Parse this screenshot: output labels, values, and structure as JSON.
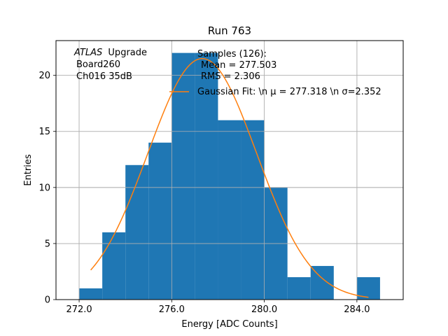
{
  "chart_data": {
    "type": "bar",
    "title": "Run 763",
    "xlabel": "Energy [ADC Counts]",
    "ylabel": "Entries",
    "xlim": [
      271.0,
      286.0
    ],
    "ylim": [
      0,
      23.1
    ],
    "xticks": [
      272.0,
      276.0,
      280.0,
      284.0
    ],
    "xtick_labels": [
      "272.0",
      "276.0",
      "280.0",
      "284.0"
    ],
    "yticks": [
      0,
      5,
      10,
      15,
      20
    ],
    "ytick_labels": [
      "0",
      "5",
      "10",
      "15",
      "20"
    ],
    "grid": true,
    "histogram": {
      "name": "Samples (126):",
      "color": "#1f77b4",
      "bin_edges": [
        272,
        273,
        274,
        275,
        276,
        277,
        278,
        279,
        280,
        281,
        282,
        283,
        284,
        285
      ],
      "counts": [
        1,
        6,
        12,
        14,
        22,
        22,
        16,
        16,
        10,
        2,
        3,
        0,
        2
      ]
    },
    "fit": {
      "type": "gaussian",
      "color": "#ff7f0e",
      "amplitude": 21.5,
      "mu": 277.318,
      "sigma": 2.352,
      "x_range": [
        272.5,
        284.5
      ]
    },
    "annotation_lines": [
      "ATLAS",
      "Upgrade",
      "Board260",
      "Ch016 35dB"
    ],
    "legend": {
      "location": "top-right",
      "samples_lines": [
        "Samples (126):",
        "Mean = 277.503",
        "RMS = 2.306"
      ],
      "fit_label": "Gaussian Fit: \\n μ = 277.318 \\n σ=2.352"
    }
  }
}
